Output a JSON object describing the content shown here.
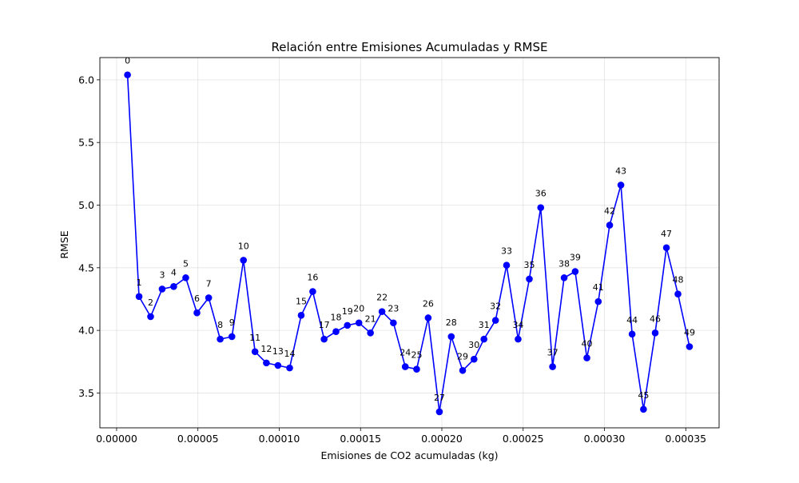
{
  "chart_data": {
    "type": "line",
    "title": "Relación entre Emisiones Acumuladas y RMSE",
    "xlabel": "Emisiones de CO2 acumuladas (kg)",
    "ylabel": "RMSE",
    "xlim": [
      -1.03e-05,
      0.0003705
    ],
    "ylim": [
      3.222,
      6.178
    ],
    "xticks": [
      0.0,
      5e-05,
      0.0001,
      0.00015,
      0.0002,
      0.00025,
      0.0003,
      0.00035
    ],
    "xtick_labels": [
      "0.00000",
      "0.00005",
      "0.00010",
      "0.00015",
      "0.00020",
      "0.00025",
      "0.00030",
      "0.00035"
    ],
    "yticks": [
      3.5,
      4.0,
      4.5,
      5.0,
      5.5,
      6.0
    ],
    "ytick_labels": [
      "3.5",
      "4.0",
      "4.5",
      "5.0",
      "5.5",
      "6.0"
    ],
    "grid": true,
    "color": "#0000ff",
    "series": [
      {
        "labels": [
          "0",
          "1",
          "2",
          "3",
          "4",
          "5",
          "6",
          "7",
          "8",
          "9",
          "10",
          "11",
          "12",
          "13",
          "14",
          "15",
          "16",
          "17",
          "18",
          "19",
          "20",
          "21",
          "22",
          "23",
          "24",
          "25",
          "26",
          "27",
          "28",
          "29",
          "30",
          "31",
          "32",
          "33",
          "34",
          "35",
          "36",
          "37",
          "38",
          "39",
          "40",
          "41",
          "42",
          "43",
          "44",
          "45",
          "46",
          "47",
          "48",
          "49"
        ],
        "x": [
          6.7e-06,
          1.38e-05,
          2.09e-05,
          2.8e-05,
          3.51e-05,
          4.25e-05,
          4.94e-05,
          5.66e-05,
          6.37e-05,
          7.09e-05,
          7.8e-05,
          8.51e-05,
          9.21e-05,
          9.92e-05,
          0.0001064,
          0.0001135,
          0.0001206,
          0.0001276,
          0.0001349,
          0.0001419,
          0.000149,
          0.0001561,
          0.0001632,
          0.0001702,
          0.0001775,
          0.0001845,
          0.0001916,
          0.0001985,
          0.0002058,
          0.0002128,
          0.0002198,
          0.0002259,
          0.000233,
          0.0002398,
          0.0002469,
          0.0002538,
          0.0002608,
          0.0002681,
          0.0002752,
          0.000282,
          0.0002892,
          0.0002962,
          0.0003032,
          0.0003101,
          0.000317,
          0.000324,
          0.0003312,
          0.0003381,
          0.0003452,
          0.0003523
        ],
        "y": [
          6.04,
          4.27,
          4.11,
          4.33,
          4.35,
          4.42,
          4.14,
          4.26,
          3.93,
          3.95,
          4.56,
          3.83,
          3.74,
          3.72,
          3.7,
          4.12,
          4.31,
          3.93,
          3.99,
          4.04,
          4.06,
          3.98,
          4.15,
          4.06,
          3.71,
          3.69,
          4.1,
          3.35,
          3.95,
          3.68,
          3.77,
          3.93,
          4.08,
          4.52,
          3.93,
          4.41,
          4.98,
          3.71,
          4.42,
          4.47,
          3.78,
          4.23,
          4.84,
          5.16,
          3.97,
          3.37,
          3.98,
          4.66,
          4.29,
          3.87
        ]
      }
    ]
  }
}
